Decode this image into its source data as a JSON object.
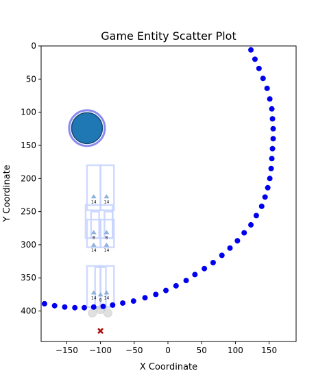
{
  "chart_data": {
    "type": "scatter",
    "title": "Game Entity Scatter Plot",
    "xlabel": "X Coordinate",
    "ylabel": "Y Coordinate",
    "xlim": [
      -188,
      190
    ],
    "ylim": [
      446,
      0
    ],
    "y_inverted": true,
    "grid": false,
    "x_ticks": [
      -150,
      -100,
      -50,
      0,
      50,
      100,
      150
    ],
    "y_ticks": [
      0,
      50,
      100,
      150,
      200,
      250,
      300,
      350,
      400
    ],
    "colors": {
      "path": "#0000ee",
      "circle_fill": "#1f77b4",
      "circle_ring": "#8a8aee",
      "rect_stroke": "#c8d4ff",
      "marker": "#7fa8d8",
      "ghost": "#cccccc",
      "cross": "#aa1111"
    },
    "path_points": [
      [
        -183,
        389
      ],
      [
        -168,
        392
      ],
      [
        -153,
        394
      ],
      [
        -138,
        395
      ],
      [
        -124,
        395
      ],
      [
        -110,
        394
      ],
      [
        -96,
        393
      ],
      [
        -82,
        391
      ],
      [
        -67,
        388
      ],
      [
        -51,
        385
      ],
      [
        -34,
        380
      ],
      [
        -18,
        375
      ],
      [
        -3,
        369
      ],
      [
        12,
        362
      ],
      [
        27,
        354
      ],
      [
        40,
        345
      ],
      [
        54,
        336
      ],
      [
        67,
        327
      ],
      [
        80,
        316
      ],
      [
        92,
        305
      ],
      [
        103,
        294
      ],
      [
        113,
        282
      ],
      [
        123,
        270
      ],
      [
        131,
        256
      ],
      [
        139,
        242
      ],
      [
        144,
        228
      ],
      [
        148,
        214
      ],
      [
        151,
        200
      ],
      [
        153,
        185
      ],
      [
        154,
        170
      ],
      [
        155,
        155
      ],
      [
        156,
        140
      ],
      [
        156,
        125
      ],
      [
        155,
        110
      ],
      [
        154,
        95
      ],
      [
        151,
        80
      ],
      [
        147,
        64
      ],
      [
        141,
        49
      ],
      [
        135,
        34
      ],
      [
        129,
        20
      ],
      [
        123,
        6
      ]
    ],
    "big_circle": {
      "x": -120,
      "y": 124,
      "label": ""
    },
    "obstacles": [
      {
        "x": -110,
        "y": 230,
        "label": "14"
      },
      {
        "x": -91,
        "y": 230,
        "label": "14"
      },
      {
        "x": -110,
        "y": 284,
        "label": "8"
      },
      {
        "x": -91,
        "y": 284,
        "label": "8"
      },
      {
        "x": -110,
        "y": 303,
        "label": "14"
      },
      {
        "x": -91,
        "y": 303,
        "label": "14"
      },
      {
        "x": -110,
        "y": 375,
        "label": "14"
      },
      {
        "x": -100,
        "y": 378,
        "label": "8"
      },
      {
        "x": -91,
        "y": 375,
        "label": "14"
      }
    ],
    "ghosts": [
      {
        "x": -112,
        "y": 403
      },
      {
        "x": -89,
        "y": 403
      },
      {
        "x": -100,
        "y": 398
      }
    ],
    "cross": {
      "x": -100,
      "y": 430
    }
  }
}
